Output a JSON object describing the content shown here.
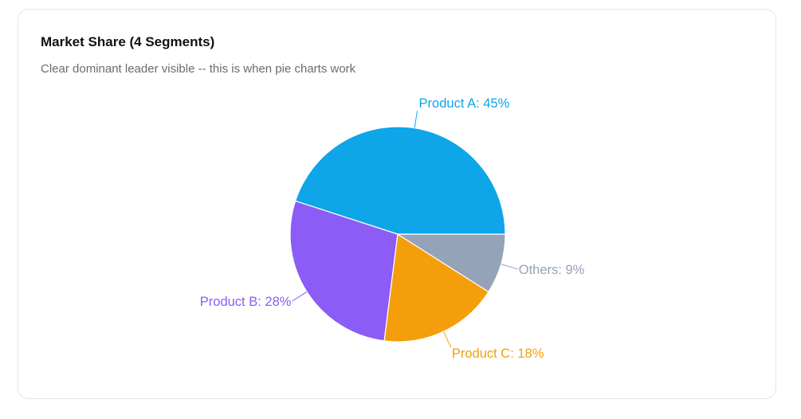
{
  "card": {
    "title": "Market Share (4 Segments)",
    "subtitle": "Clear dominant leader visible -- this is when pie charts work"
  },
  "chart_data": {
    "type": "pie",
    "start_angle_deg": 0,
    "direction": "counterclockwise",
    "slices": [
      {
        "name": "Product A",
        "value": 45,
        "color": "#0ea5e9",
        "label": "Product A: 45%"
      },
      {
        "name": "Product B",
        "value": 28,
        "color": "#8b5cf6",
        "label": "Product B: 28%"
      },
      {
        "name": "Product C",
        "value": 18,
        "color": "#f59e0b",
        "label": "Product C: 18%"
      },
      {
        "name": "Others",
        "value": 9,
        "color": "#94a3b8",
        "label": "Others: 9%"
      }
    ]
  }
}
